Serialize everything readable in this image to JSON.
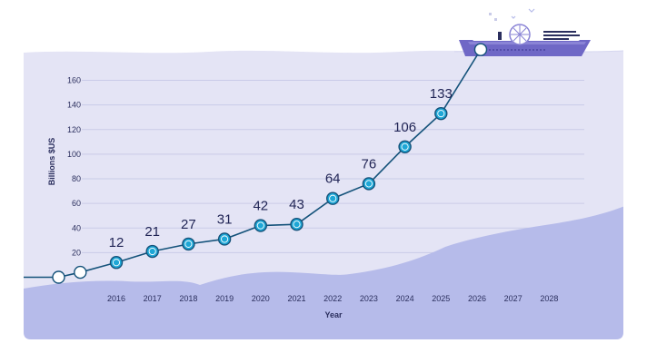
{
  "chart_data": {
    "type": "line",
    "title": "",
    "xlabel": "Year",
    "ylabel": "Billions $US",
    "ylim": [
      0,
      160
    ],
    "y_ticks": [
      20,
      40,
      60,
      80,
      100,
      120,
      140,
      160
    ],
    "x_tick_labels": [
      "2016",
      "2017",
      "2018",
      "2019",
      "2020",
      "2021",
      "2022",
      "2023",
      "2024",
      "2025",
      "2026",
      "2027",
      "2028"
    ],
    "series": [
      {
        "name": "Billions $US",
        "points": [
          {
            "x": 2014.4,
            "y": 0,
            "label": ""
          },
          {
            "x": 2015.0,
            "y": 4,
            "label": ""
          },
          {
            "x": 2016.0,
            "y": 12,
            "label": "12"
          },
          {
            "x": 2017.0,
            "y": 21,
            "label": "21"
          },
          {
            "x": 2018.0,
            "y": 27,
            "label": "27"
          },
          {
            "x": 2019.0,
            "y": 31,
            "label": "31"
          },
          {
            "x": 2020.0,
            "y": 42,
            "label": "42"
          },
          {
            "x": 2021.0,
            "y": 43,
            "label": "43"
          },
          {
            "x": 2022.0,
            "y": 64,
            "label": "64"
          },
          {
            "x": 2023.0,
            "y": 76,
            "label": "76"
          },
          {
            "x": 2024.0,
            "y": 106,
            "label": "106"
          },
          {
            "x": 2025.0,
            "y": 133,
            "label": "133"
          },
          {
            "x": 2026.1,
            "y": 185,
            "label": ""
          }
        ]
      }
    ],
    "colors": {
      "line": "#14527a",
      "marker_fill": "#1ea7d6",
      "panel": "#e4e4f5",
      "hills": "#b6bbea",
      "grid": "#c9cbe8",
      "text": "#2b2f5e",
      "ship_hull": "#6f68c6"
    },
    "grid": true,
    "legend": "none",
    "decoration": "ship-illustration"
  }
}
